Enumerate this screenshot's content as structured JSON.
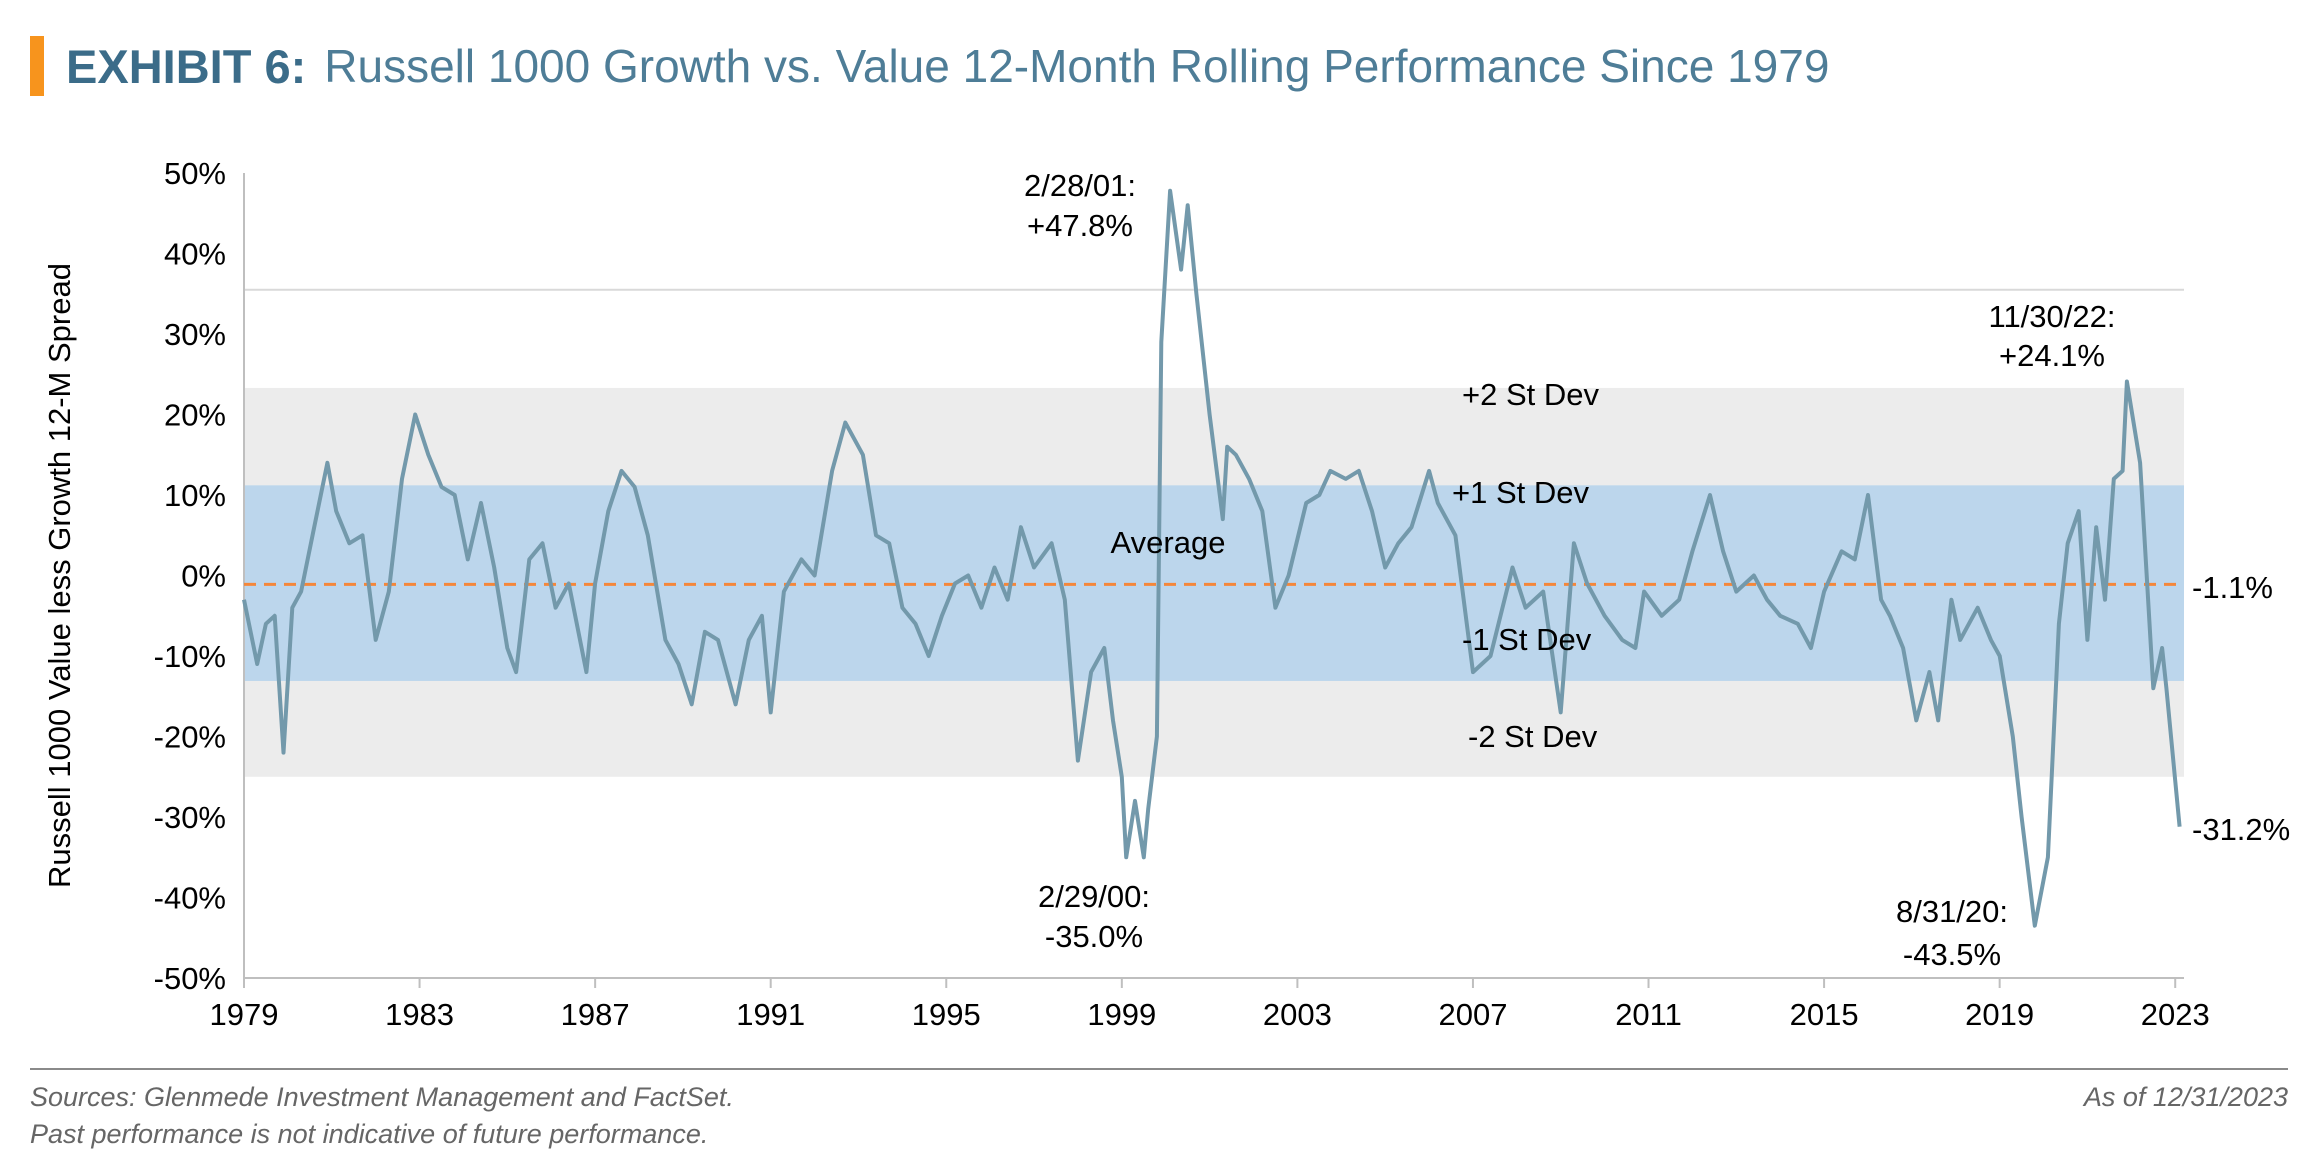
{
  "header": {
    "exhibit": "EXHIBIT 6:",
    "title": "Russell 1000 Growth vs. Value 12-Month Rolling Performance Since 1979",
    "accent_color": "#f7941d"
  },
  "chart_data": {
    "type": "line",
    "title": "Russell 1000 Growth vs. Value 12-Month Rolling Performance Since 1979",
    "ylabel": "Russell 1000 Value less Growth 12-M Spread",
    "xlabel": "",
    "xlim": [
      1979,
      2023.2
    ],
    "ylim": [
      -50,
      50
    ],
    "x_ticks": [
      "1979",
      "1983",
      "1987",
      "1991",
      "1995",
      "1999",
      "2003",
      "2007",
      "2011",
      "2015",
      "2019",
      "2023"
    ],
    "y_ticks": [
      "50%",
      "40%",
      "30%",
      "20%",
      "10%",
      "0%",
      "-10%",
      "-20%",
      "-30%",
      "-40%",
      "-50%"
    ],
    "line_color": "#7399ab",
    "average": {
      "value": -1.1,
      "label": "Average",
      "value_label": "-1.1%",
      "color": "#f4873a"
    },
    "bands": [
      {
        "label": "+2 St Dev",
        "from": -25,
        "to": 23.3,
        "color": "#ececec"
      },
      {
        "label": "+1 St Dev",
        "from": -13.1,
        "to": 11.2,
        "color": "#bcd6ec"
      }
    ],
    "band_labels": {
      "plus2": "+2 St Dev",
      "plus1": "+1 St Dev",
      "minus1": "-1 St Dev",
      "minus2": "-2 St Dev"
    },
    "reference_line": 35.5,
    "series": [
      {
        "x": [
          1979,
          1979.3,
          1979.5,
          1979.7,
          1979.9,
          1980.1,
          1980.3,
          1980.6,
          1980.9,
          1981.1,
          1981.4,
          1981.7,
          1982.0,
          1982.3,
          1982.6,
          1982.9,
          1983.2,
          1983.5,
          1983.8,
          1984.1,
          1984.4,
          1984.7,
          1985.0,
          1985.2,
          1985.5,
          1985.8,
          1986.1,
          1986.4,
          1986.8,
          1987.0,
          1987.3,
          1987.6,
          1987.9,
          1988.2,
          1988.6,
          1988.9,
          1989.2,
          1989.5,
          1989.8,
          1990.2,
          1990.5,
          1990.8,
          1991.0,
          1991.3,
          1991.7,
          1992.0,
          1992.4,
          1992.7,
          1993.1,
          1993.4,
          1993.7,
          1994.0,
          1994.3,
          1994.6,
          1994.9,
          1995.2,
          1995.5,
          1995.8,
          1996.1,
          1996.4,
          1996.7,
          1997.0,
          1997.4,
          1997.7,
          1998.0,
          1998.3,
          1998.6,
          1998.8,
          1999.0,
          1999.1,
          1999.3,
          1999.5,
          1999.6,
          1999.8,
          1999.9,
          2000.1,
          2000.35,
          2000.5,
          2000.7,
          2001.0,
          2001.3,
          2001.4,
          2001.6,
          2001.9,
          2002.2,
          2002.5,
          2002.8,
          2003.2,
          2003.5,
          2003.75,
          2004.1,
          2004.4,
          2004.7,
          2005.0,
          2005.3,
          2005.6,
          2006.0,
          2006.2,
          2006.6,
          2007.0,
          2007.4,
          2007.9,
          2008.2,
          2008.6,
          2009.0,
          2009.3,
          2009.6,
          2010.0,
          2010.4,
          2010.7,
          2010.9,
          2011.3,
          2011.7,
          2012.0,
          2012.4,
          2012.7,
          2013.0,
          2013.4,
          2013.7,
          2014.0,
          2014.4,
          2014.7,
          2015.0,
          2015.4,
          2015.7,
          2016.0,
          2016.3,
          2016.5,
          2016.8,
          2017.1,
          2017.4,
          2017.6,
          2017.9,
          2018.1,
          2018.3,
          2018.5,
          2018.8,
          2019.0,
          2019.3,
          2019.5,
          2019.8,
          2020.1,
          2020.35,
          2020.55,
          2020.8,
          2021.0,
          2021.2,
          2021.4,
          2021.6,
          2021.8,
          2021.9,
          2022.2,
          2022.5,
          2022.7,
          2022.8,
          2023.1
        ],
        "y": [
          -3,
          -11,
          -6,
          -5,
          -22,
          -4,
          -2,
          6,
          14,
          8,
          4,
          5,
          -8,
          -2,
          12,
          20,
          15,
          11,
          10,
          2,
          9,
          1,
          -9,
          -12,
          2,
          4,
          -4,
          -1,
          -12,
          -1,
          8,
          13,
          11,
          5,
          -8,
          -11,
          -16,
          -7,
          -8,
          -16,
          -8,
          -5,
          -17,
          -2,
          2,
          0,
          13,
          19,
          15,
          5,
          4,
          -4,
          -6,
          -10,
          -5,
          -1,
          0,
          -4,
          1,
          -3,
          6,
          1,
          4,
          -3,
          -23,
          -12,
          -9,
          -18,
          -25,
          -35,
          -28,
          -35,
          -29,
          -20,
          29,
          47.8,
          38,
          46,
          35,
          20,
          7,
          16,
          15,
          12,
          8,
          -4,
          0,
          9,
          10,
          13,
          12,
          13,
          8,
          1,
          4,
          6,
          13,
          9,
          5,
          -12,
          -10,
          1,
          -4,
          -2,
          -17,
          4,
          -1,
          -5,
          -8,
          -9,
          -2,
          -5,
          -3,
          3,
          10,
          3,
          -2,
          0,
          -3,
          -5,
          -6,
          -9,
          -2,
          3,
          2,
          10,
          -3,
          -5,
          -9,
          -18,
          -12,
          -18,
          -3,
          -8,
          -6,
          -4,
          -8,
          -10,
          -20,
          -30,
          -43.5,
          -35,
          -6,
          4,
          8,
          -8,
          6,
          -3,
          12,
          13,
          24.1,
          14,
          -14,
          -9,
          -14,
          -31.2
        ]
      }
    ],
    "annotations": [
      {
        "date": "2/28/01:",
        "value": "+47.8%",
        "x": 2000.1,
        "y": 47.8
      },
      {
        "date": "2/29/00:",
        "value": "-35.0%",
        "x": 1999.3,
        "y": -35
      },
      {
        "date": "11/30/22:",
        "value": "+24.1%",
        "x": 2021.9,
        "y": 24.1
      },
      {
        "date": "8/31/20:",
        "value": "-43.5%",
        "x": 2019.8,
        "y": -43.5
      },
      {
        "date": "",
        "value": "-31.2%",
        "x": 2023.1,
        "y": -31.2
      }
    ]
  },
  "footer": {
    "sources": "Sources: Glenmede Investment Management and FactSet.",
    "disclaimer": "Past performance is not indicative of future performance.",
    "as_of": "As of 12/31/2023"
  }
}
